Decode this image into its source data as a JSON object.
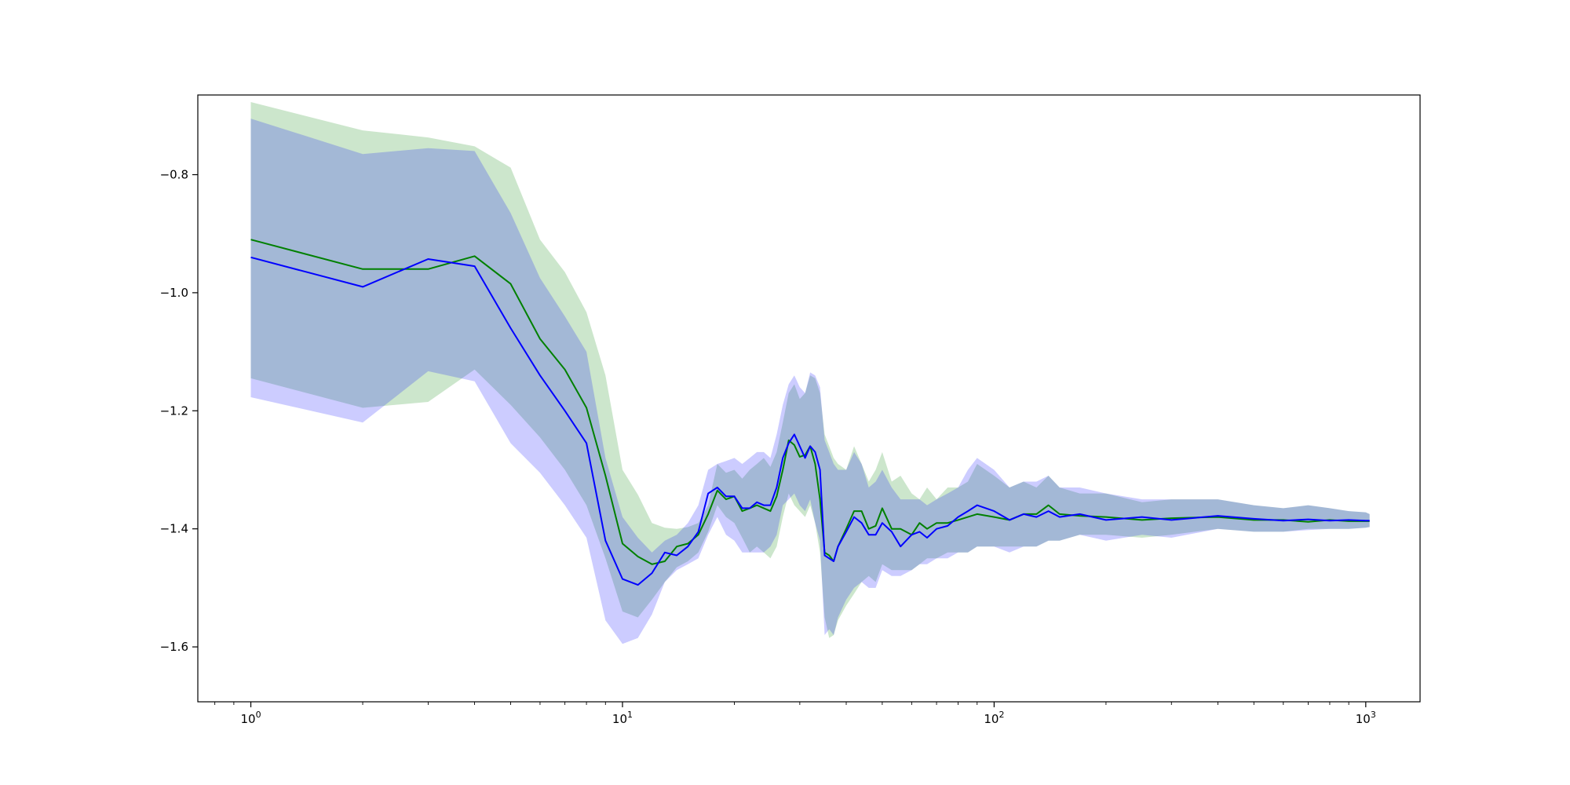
{
  "chart_data": {
    "type": "line",
    "title": "",
    "xlabel": "",
    "ylabel": "",
    "xscale": "log",
    "xlim": [
      0.72,
      1400
    ],
    "ylim": [
      -1.693,
      -0.665
    ],
    "grid": false,
    "legend": "none",
    "x_ticks": [
      {
        "value": 1,
        "base": "10",
        "exp": "0"
      },
      {
        "value": 10,
        "base": "10",
        "exp": "1"
      },
      {
        "value": 100,
        "base": "10",
        "exp": "2"
      },
      {
        "value": 1000,
        "base": "10",
        "exp": "3"
      }
    ],
    "y_ticks": [
      {
        "value": -0.8,
        "label": "−0.8"
      },
      {
        "value": -1.0,
        "label": "−1.0"
      },
      {
        "value": -1.2,
        "label": "−1.2"
      },
      {
        "value": -1.4,
        "label": "−1.4"
      },
      {
        "value": -1.6,
        "label": "−1.6"
      }
    ],
    "series": [
      {
        "color": "#008000",
        "band_color": "#008000",
        "band_opacity": 0.2,
        "points": [
          [
            1,
            -0.91,
            -0.677,
            -1.145
          ],
          [
            2,
            -0.96,
            -0.725,
            -1.195
          ],
          [
            3,
            -0.96,
            -0.737,
            -1.185
          ],
          [
            4,
            -0.938,
            -0.752,
            -1.13
          ],
          [
            5,
            -0.985,
            -0.788,
            -1.19
          ],
          [
            6,
            -1.078,
            -0.91,
            -1.245
          ],
          [
            7,
            -1.13,
            -0.965,
            -1.3
          ],
          [
            8,
            -1.195,
            -1.033,
            -1.36
          ],
          [
            9,
            -1.31,
            -1.14,
            -1.45
          ],
          [
            10,
            -1.425,
            -1.3,
            -1.54
          ],
          [
            11,
            -1.447,
            -1.342,
            -1.55
          ],
          [
            12,
            -1.46,
            -1.39,
            -1.52
          ],
          [
            13,
            -1.455,
            -1.398,
            -1.49
          ],
          [
            14,
            -1.43,
            -1.4,
            -1.465
          ],
          [
            15,
            -1.425,
            -1.397,
            -1.455
          ],
          [
            16,
            -1.41,
            -1.39,
            -1.44
          ],
          [
            17,
            -1.375,
            -1.36,
            -1.405
          ],
          [
            18,
            -1.335,
            -1.29,
            -1.36
          ],
          [
            19,
            -1.35,
            -1.305,
            -1.38
          ],
          [
            20,
            -1.345,
            -1.3,
            -1.39
          ],
          [
            21,
            -1.37,
            -1.315,
            -1.415
          ],
          [
            22,
            -1.365,
            -1.3,
            -1.44
          ],
          [
            23,
            -1.36,
            -1.29,
            -1.43
          ],
          [
            24,
            -1.365,
            -1.28,
            -1.44
          ],
          [
            25,
            -1.37,
            -1.295,
            -1.45
          ],
          [
            26,
            -1.345,
            -1.27,
            -1.43
          ],
          [
            27,
            -1.3,
            -1.22,
            -1.38
          ],
          [
            28,
            -1.25,
            -1.17,
            -1.34
          ],
          [
            29,
            -1.258,
            -1.155,
            -1.36
          ],
          [
            30,
            -1.278,
            -1.18,
            -1.37
          ],
          [
            31,
            -1.275,
            -1.17,
            -1.38
          ],
          [
            32,
            -1.26,
            -1.14,
            -1.36
          ],
          [
            33,
            -1.29,
            -1.145,
            -1.39
          ],
          [
            34,
            -1.35,
            -1.17,
            -1.44
          ],
          [
            35,
            -1.44,
            -1.24,
            -1.55
          ],
          [
            36,
            -1.445,
            -1.26,
            -1.585
          ],
          [
            37,
            -1.455,
            -1.28,
            -1.58
          ],
          [
            38,
            -1.43,
            -1.29,
            -1.555
          ],
          [
            40,
            -1.4,
            -1.3,
            -1.53
          ],
          [
            42,
            -1.37,
            -1.26,
            -1.51
          ],
          [
            44,
            -1.37,
            -1.29,
            -1.49
          ],
          [
            46,
            -1.4,
            -1.32,
            -1.48
          ],
          [
            48,
            -1.395,
            -1.3,
            -1.49
          ],
          [
            50,
            -1.365,
            -1.27,
            -1.46
          ],
          [
            53,
            -1.4,
            -1.32,
            -1.47
          ],
          [
            56,
            -1.4,
            -1.31,
            -1.47
          ],
          [
            60,
            -1.41,
            -1.34,
            -1.47
          ],
          [
            63,
            -1.39,
            -1.35,
            -1.46
          ],
          [
            66,
            -1.4,
            -1.33,
            -1.45
          ],
          [
            70,
            -1.39,
            -1.35,
            -1.45
          ],
          [
            75,
            -1.39,
            -1.33,
            -1.44
          ],
          [
            80,
            -1.385,
            -1.33,
            -1.44
          ],
          [
            85,
            -1.38,
            -1.32,
            -1.44
          ],
          [
            90,
            -1.375,
            -1.29,
            -1.43
          ],
          [
            100,
            -1.38,
            -1.31,
            -1.43
          ],
          [
            110,
            -1.385,
            -1.33,
            -1.43
          ],
          [
            120,
            -1.375,
            -1.32,
            -1.43
          ],
          [
            130,
            -1.375,
            -1.33,
            -1.43
          ],
          [
            140,
            -1.36,
            -1.31,
            -1.42
          ],
          [
            150,
            -1.375,
            -1.33,
            -1.42
          ],
          [
            170,
            -1.378,
            -1.34,
            -1.41
          ],
          [
            200,
            -1.38,
            -1.34,
            -1.41
          ],
          [
            250,
            -1.385,
            -1.355,
            -1.415
          ],
          [
            300,
            -1.382,
            -1.35,
            -1.41
          ],
          [
            400,
            -1.38,
            -1.35,
            -1.4
          ],
          [
            500,
            -1.385,
            -1.36,
            -1.405
          ],
          [
            600,
            -1.385,
            -1.365,
            -1.405
          ],
          [
            700,
            -1.388,
            -1.36,
            -1.4
          ],
          [
            800,
            -1.385,
            -1.365,
            -1.4
          ],
          [
            900,
            -1.387,
            -1.37,
            -1.4
          ],
          [
            1000,
            -1.387,
            -1.372,
            -1.398
          ],
          [
            1024,
            -1.387,
            -1.375,
            -1.397
          ]
        ]
      },
      {
        "color": "#0000ff",
        "band_color": "#0000ff",
        "band_opacity": 0.2,
        "points": [
          [
            1,
            -0.94,
            -0.705,
            -1.177
          ],
          [
            2,
            -0.99,
            -0.765,
            -1.22
          ],
          [
            3,
            -0.943,
            -0.755,
            -1.133
          ],
          [
            4,
            -0.955,
            -0.76,
            -1.15
          ],
          [
            5,
            -1.06,
            -0.865,
            -1.255
          ],
          [
            6,
            -1.14,
            -0.975,
            -1.305
          ],
          [
            7,
            -1.2,
            -1.04,
            -1.36
          ],
          [
            8,
            -1.255,
            -1.1,
            -1.415
          ],
          [
            9,
            -1.42,
            -1.28,
            -1.555
          ],
          [
            10,
            -1.485,
            -1.38,
            -1.595
          ],
          [
            11,
            -1.495,
            -1.415,
            -1.585
          ],
          [
            12,
            -1.475,
            -1.44,
            -1.545
          ],
          [
            13,
            -1.44,
            -1.42,
            -1.49
          ],
          [
            14,
            -1.445,
            -1.41,
            -1.47
          ],
          [
            15,
            -1.43,
            -1.39,
            -1.46
          ],
          [
            16,
            -1.405,
            -1.36,
            -1.45
          ],
          [
            17,
            -1.34,
            -1.3,
            -1.41
          ],
          [
            18,
            -1.33,
            -1.29,
            -1.38
          ],
          [
            19,
            -1.345,
            -1.285,
            -1.41
          ],
          [
            20,
            -1.345,
            -1.28,
            -1.42
          ],
          [
            21,
            -1.365,
            -1.29,
            -1.44
          ],
          [
            22,
            -1.365,
            -1.28,
            -1.44
          ],
          [
            23,
            -1.355,
            -1.27,
            -1.44
          ],
          [
            24,
            -1.36,
            -1.27,
            -1.44
          ],
          [
            25,
            -1.36,
            -1.28,
            -1.43
          ],
          [
            26,
            -1.33,
            -1.24,
            -1.41
          ],
          [
            27,
            -1.28,
            -1.19,
            -1.36
          ],
          [
            28,
            -1.255,
            -1.155,
            -1.35
          ],
          [
            29,
            -1.24,
            -1.14,
            -1.34
          ],
          [
            30,
            -1.26,
            -1.16,
            -1.36
          ],
          [
            31,
            -1.28,
            -1.17,
            -1.37
          ],
          [
            32,
            -1.26,
            -1.135,
            -1.35
          ],
          [
            33,
            -1.27,
            -1.14,
            -1.39
          ],
          [
            34,
            -1.3,
            -1.16,
            -1.42
          ],
          [
            35,
            -1.445,
            -1.25,
            -1.58
          ],
          [
            36,
            -1.45,
            -1.27,
            -1.57
          ],
          [
            37,
            -1.455,
            -1.29,
            -1.58
          ],
          [
            38,
            -1.43,
            -1.3,
            -1.55
          ],
          [
            40,
            -1.405,
            -1.3,
            -1.52
          ],
          [
            42,
            -1.38,
            -1.27,
            -1.5
          ],
          [
            44,
            -1.39,
            -1.29,
            -1.49
          ],
          [
            46,
            -1.41,
            -1.33,
            -1.5
          ],
          [
            48,
            -1.41,
            -1.32,
            -1.5
          ],
          [
            50,
            -1.39,
            -1.3,
            -1.47
          ],
          [
            53,
            -1.405,
            -1.33,
            -1.48
          ],
          [
            56,
            -1.43,
            -1.35,
            -1.48
          ],
          [
            60,
            -1.41,
            -1.35,
            -1.47
          ],
          [
            63,
            -1.405,
            -1.35,
            -1.46
          ],
          [
            66,
            -1.415,
            -1.36,
            -1.46
          ],
          [
            70,
            -1.4,
            -1.35,
            -1.45
          ],
          [
            75,
            -1.395,
            -1.34,
            -1.45
          ],
          [
            80,
            -1.38,
            -1.33,
            -1.44
          ],
          [
            85,
            -1.37,
            -1.3,
            -1.44
          ],
          [
            90,
            -1.36,
            -1.28,
            -1.43
          ],
          [
            100,
            -1.37,
            -1.3,
            -1.43
          ],
          [
            110,
            -1.385,
            -1.33,
            -1.44
          ],
          [
            120,
            -1.375,
            -1.32,
            -1.43
          ],
          [
            130,
            -1.38,
            -1.32,
            -1.43
          ],
          [
            140,
            -1.37,
            -1.31,
            -1.42
          ],
          [
            150,
            -1.38,
            -1.33,
            -1.42
          ],
          [
            170,
            -1.375,
            -1.33,
            -1.41
          ],
          [
            200,
            -1.385,
            -1.34,
            -1.42
          ],
          [
            250,
            -1.38,
            -1.35,
            -1.41
          ],
          [
            300,
            -1.385,
            -1.35,
            -1.415
          ],
          [
            400,
            -1.378,
            -1.35,
            -1.4
          ],
          [
            500,
            -1.383,
            -1.36,
            -1.405
          ],
          [
            600,
            -1.386,
            -1.365,
            -1.405
          ],
          [
            700,
            -1.384,
            -1.36,
            -1.402
          ],
          [
            800,
            -1.386,
            -1.365,
            -1.4
          ],
          [
            900,
            -1.385,
            -1.37,
            -1.4
          ],
          [
            1000,
            -1.386,
            -1.372,
            -1.398
          ],
          [
            1024,
            -1.386,
            -1.375,
            -1.397
          ]
        ]
      }
    ]
  }
}
